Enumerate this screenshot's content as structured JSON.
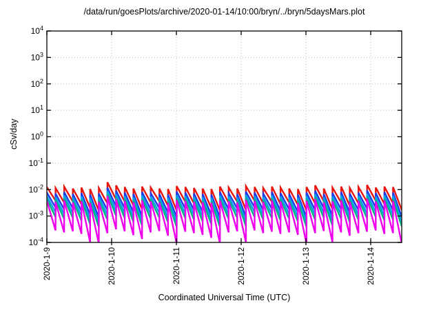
{
  "page": {
    "background": "#ffffff",
    "text_color": "#000000"
  },
  "chart_data": {
    "type": "line",
    "title": "/data/run/goesPlots/archive/2020-01-14/10:00/bryn/../bryn/5daysMars.plot",
    "xlabel": "Coordinated Universal Time (UTC)",
    "ylabel": "cSv/day",
    "x_axis": {
      "tick_labels": [
        "2020-1-9",
        "2020-1-10",
        "2020-1-11",
        "2020-1-12",
        "2020-1-13",
        "2020-1-14"
      ],
      "tick_days": [
        0,
        1,
        2,
        3,
        4,
        5
      ],
      "range_days": [
        0,
        5.479
      ]
    },
    "y_axis": {
      "scale": "log10",
      "tick_exponents": [
        4,
        3,
        2,
        1,
        0,
        -1,
        -2,
        -3,
        -4
      ],
      "range_exponents": [
        -4,
        4
      ],
      "tick_mantissa": "10"
    },
    "grid": {
      "show": true,
      "color": "#bdbdbd",
      "style": "dotted"
    },
    "legend": {
      "show": false
    },
    "border_color": "#222222",
    "sawtooth": {
      "period_days": 0.13363,
      "teeth": 41,
      "shape": "vertical rise to peak, log-linear decay to trough"
    },
    "series": [
      {
        "name": "red",
        "color": "#e8150d",
        "peaks": [
          0.0125,
          0.0115,
          0.013,
          0.011,
          0.012,
          0.0105,
          0.0115,
          0.019,
          0.0145,
          0.0125,
          0.011,
          0.013,
          0.012,
          0.011,
          0.0105,
          0.0135,
          0.0125,
          0.0115,
          0.011,
          0.0105,
          0.013,
          0.012,
          0.011,
          0.0135,
          0.0125,
          0.0115,
          0.013,
          0.012,
          0.011,
          0.0105,
          0.0125,
          0.0145,
          0.011,
          0.012,
          0.013,
          0.0115,
          0.0125,
          0.015,
          0.012,
          0.013,
          0.0125
        ],
        "troughs": [
          0.0038,
          0.0032,
          0.0035,
          0.0028,
          0.002,
          0.0016,
          0.003,
          0.0042,
          0.0035,
          0.0025,
          0.0018,
          0.0032,
          0.0036,
          0.0024,
          0.0016,
          0.0034,
          0.003,
          0.0026,
          0.002,
          0.0016,
          0.0032,
          0.0035,
          0.0017,
          0.0038,
          0.003,
          0.0034,
          0.0028,
          0.0032,
          0.0026,
          0.0016,
          0.003,
          0.0036,
          0.0018,
          0.0032,
          0.0024,
          0.003,
          0.0034,
          0.0038,
          0.0028,
          0.003,
          0.0017
        ]
      },
      {
        "name": "blue",
        "color": "#1f3ce8",
        "peaks": [
          0.00775,
          0.00713,
          0.00806,
          0.00682,
          0.00744,
          0.00651,
          0.00713,
          0.01178,
          0.00899,
          0.00775,
          0.00682,
          0.00806,
          0.00744,
          0.00682,
          0.00651,
          0.00837,
          0.00775,
          0.00713,
          0.00682,
          0.00651,
          0.00806,
          0.00744,
          0.00682,
          0.00837,
          0.00775,
          0.00713,
          0.00806,
          0.00744,
          0.00682,
          0.00651,
          0.00775,
          0.00899,
          0.00682,
          0.00744,
          0.00806,
          0.00713,
          0.00775,
          0.0093,
          0.00744,
          0.00806,
          0.00775
        ],
        "troughs": [
          0.00209,
          0.00176,
          0.00193,
          0.00154,
          0.0011,
          0.00088,
          0.00165,
          0.00231,
          0.00193,
          0.00138,
          0.00099,
          0.00176,
          0.00198,
          0.00132,
          0.00088,
          0.00187,
          0.00165,
          0.00143,
          0.0011,
          0.00088,
          0.00176,
          0.00193,
          0.00094,
          0.00209,
          0.00165,
          0.00187,
          0.00154,
          0.00176,
          0.00143,
          0.00088,
          0.00165,
          0.00198,
          0.00099,
          0.00176,
          0.00132,
          0.00165,
          0.00187,
          0.00209,
          0.00154,
          0.00165,
          0.00094
        ]
      },
      {
        "name": "cyan",
        "color": "#00a2e8",
        "peaks": [
          0.00575,
          0.00529,
          0.00598,
          0.00506,
          0.00552,
          0.00483,
          0.00529,
          0.00874,
          0.00667,
          0.00575,
          0.00506,
          0.00598,
          0.00552,
          0.00506,
          0.00483,
          0.00621,
          0.00575,
          0.00529,
          0.00506,
          0.00483,
          0.00598,
          0.00552,
          0.00506,
          0.00621,
          0.00575,
          0.00529,
          0.00598,
          0.00552,
          0.00506,
          0.00483,
          0.00575,
          0.00667,
          0.00506,
          0.00552,
          0.00598,
          0.00529,
          0.00575,
          0.0069,
          0.00552,
          0.00598,
          0.00575
        ],
        "troughs": [
          0.00137,
          0.00115,
          0.00126,
          0.00101,
          0.00072,
          0.00058,
          0.00108,
          0.00151,
          0.00126,
          0.0009,
          0.00065,
          0.00115,
          0.0013,
          0.00086,
          0.00058,
          0.00122,
          0.00108,
          0.00094,
          0.00072,
          0.00058,
          0.00115,
          0.00126,
          0.00061,
          0.00137,
          0.00108,
          0.00122,
          0.00101,
          0.00115,
          0.00094,
          0.00058,
          0.00108,
          0.0013,
          0.00065,
          0.00115,
          0.00086,
          0.00108,
          0.00122,
          0.00137,
          0.00101,
          0.00108,
          0.00061
        ]
      },
      {
        "name": "green",
        "color": "#00b383",
        "peaks": [
          0.00438,
          0.00403,
          0.00455,
          0.00385,
          0.0042,
          0.00368,
          0.00403,
          0.00665,
          0.00508,
          0.00438,
          0.00385,
          0.00455,
          0.0042,
          0.00385,
          0.00368,
          0.00473,
          0.00438,
          0.00403,
          0.00385,
          0.00368,
          0.00455,
          0.0042,
          0.00385,
          0.00473,
          0.00438,
          0.00403,
          0.00455,
          0.0042,
          0.00385,
          0.00368,
          0.00438,
          0.00508,
          0.00385,
          0.0042,
          0.00455,
          0.00403,
          0.00438,
          0.00525,
          0.0042,
          0.00455,
          0.00438
        ],
        "troughs": [
          0.00091,
          0.00077,
          0.00084,
          0.00067,
          0.00048,
          0.00038,
          0.00072,
          0.00101,
          0.00084,
          0.0006,
          0.00043,
          0.00077,
          0.00086,
          0.00058,
          0.00038,
          0.00082,
          0.00072,
          0.00062,
          0.00048,
          0.00038,
          0.00077,
          0.00084,
          0.00041,
          0.00091,
          0.00072,
          0.00082,
          0.00067,
          0.00077,
          0.00062,
          0.00038,
          0.00072,
          0.00086,
          0.00043,
          0.00077,
          0.00058,
          0.00072,
          0.00082,
          0.00091,
          0.00067,
          0.00072,
          0.00041
        ]
      },
      {
        "name": "magenta",
        "color": "#ee00ee",
        "peaks": [
          0.00375,
          0.00345,
          0.0039,
          0.0033,
          0.0036,
          0.00315,
          0.00345,
          0.0057,
          0.00435,
          0.00375,
          0.0033,
          0.0039,
          0.0036,
          0.0033,
          0.00315,
          0.00405,
          0.00375,
          0.00345,
          0.0033,
          0.00315,
          0.0039,
          0.0036,
          0.0033,
          0.00405,
          0.00375,
          0.00345,
          0.0039,
          0.0036,
          0.0033,
          0.00315,
          0.00375,
          0.00435,
          0.0033,
          0.0036,
          0.0039,
          0.00345,
          0.00375,
          0.0045,
          0.0036,
          0.0039,
          0.00375
        ],
        "troughs": [
          0.000285,
          0.00024,
          0.000263,
          0.00021,
          0.0001,
          9e-05,
          0.000225,
          0.000315,
          0.000263,
          0.000188,
          0.000135,
          0.00024,
          0.00027,
          0.00018,
          9e-05,
          0.000255,
          0.000225,
          0.000195,
          0.00015,
          9e-05,
          0.00024,
          0.000263,
          0.0001,
          0.000285,
          0.000225,
          0.000255,
          0.00021,
          0.00024,
          0.000195,
          9e-05,
          0.000225,
          0.00027,
          0.0001,
          0.00024,
          0.00018,
          0.000225,
          0.000255,
          0.000285,
          0.00021,
          0.000225,
          9e-05
        ]
      }
    ]
  }
}
